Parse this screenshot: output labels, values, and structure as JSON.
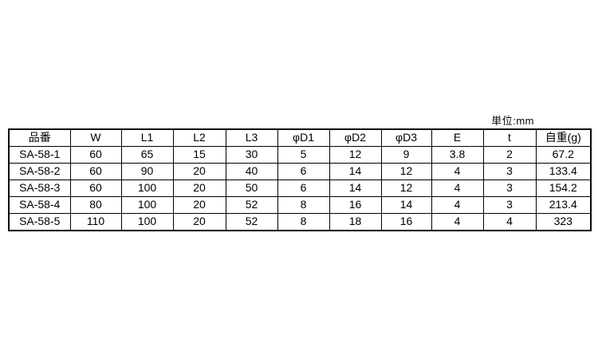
{
  "unit_note": "単位:mm",
  "chart_data": {
    "type": "table",
    "unit_label": "単位:mm",
    "columns": [
      "品番",
      "W",
      "L1",
      "L2",
      "L3",
      "φD1",
      "φD2",
      "φD3",
      "E",
      "t",
      "自重(g)"
    ],
    "rows": [
      [
        "SA-58-1",
        "60",
        "65",
        "15",
        "30",
        "5",
        "12",
        "9",
        "3.8",
        "2",
        "67.2"
      ],
      [
        "SA-58-2",
        "60",
        "90",
        "20",
        "40",
        "6",
        "14",
        "12",
        "4",
        "3",
        "133.4"
      ],
      [
        "SA-58-3",
        "60",
        "100",
        "20",
        "50",
        "6",
        "14",
        "12",
        "4",
        "3",
        "154.2"
      ],
      [
        "SA-58-4",
        "80",
        "100",
        "20",
        "52",
        "8",
        "16",
        "14",
        "4",
        "3",
        "213.4"
      ],
      [
        "SA-58-5",
        "110",
        "100",
        "20",
        "52",
        "8",
        "18",
        "16",
        "4",
        "4",
        "323"
      ]
    ],
    "colors": {
      "border": "#000000",
      "text": "#000000",
      "background": "#ffffff"
    }
  }
}
